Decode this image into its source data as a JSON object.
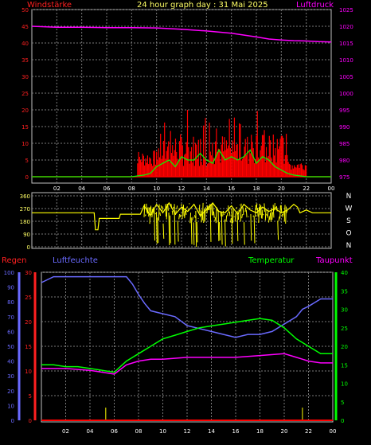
{
  "header": {
    "title": "24 hour graph day : 31 Mai 2025",
    "left_label": "Windstärke",
    "right_label": "Luftdruck"
  },
  "colors": {
    "wind_gust": "#ff0000",
    "wind_avg": "#00ff00",
    "pressure": "#ff00ff",
    "direction": "#ffff00",
    "humidity": "#6a6aff",
    "temperature": "#00ff00",
    "dewpoint": "#ff00ff",
    "rain": "#ff0000",
    "grid": "#7a7a7a",
    "frame": "#c0c0c0"
  },
  "chart_data": [
    {
      "type": "line",
      "name": "wind-pressure",
      "x_ticks": [
        "02",
        "04",
        "06",
        "08",
        "10",
        "12",
        "14",
        "16",
        "18",
        "20",
        "22",
        "00"
      ],
      "xlim": [
        0,
        24
      ],
      "ylim_left": [
        0,
        50
      ],
      "left_ticks": [
        "0",
        "5",
        "10",
        "15",
        "20",
        "25",
        "30",
        "35",
        "40",
        "45",
        "50"
      ],
      "ylim_right": [
        975,
        1025
      ],
      "right_ticks": [
        "975",
        "980",
        "985",
        "990",
        "995",
        "1000",
        "1005",
        "1010",
        "1015",
        "1020",
        "1025"
      ],
      "series": [
        {
          "key": "pressure",
          "axis": "right",
          "x": [
            0,
            2,
            4,
            6,
            8,
            10,
            12,
            14,
            16,
            18,
            19,
            20,
            21,
            22,
            23,
            24
          ],
          "y": [
            1020,
            1019.7,
            1019.7,
            1019.6,
            1019.6,
            1019.5,
            1019.1,
            1018.6,
            1017.9,
            1016.8,
            1016.2,
            1015.9,
            1015.7,
            1015.6,
            1015.4,
            1015.3
          ]
        },
        {
          "key": "wind_avg",
          "axis": "left",
          "x": [
            0,
            8,
            9,
            9.5,
            10,
            10.5,
            11,
            11.5,
            12,
            12.5,
            13,
            13.5,
            14,
            14.5,
            15,
            15.5,
            16,
            16.5,
            17,
            17.5,
            18,
            18.5,
            19,
            19.5,
            20,
            20.5,
            21,
            22,
            23,
            24
          ],
          "y": [
            0,
            0,
            0.5,
            1,
            3,
            4,
            5,
            3,
            6,
            5,
            5,
            7,
            5,
            4,
            8,
            5,
            6,
            5,
            6,
            8,
            4,
            6,
            5,
            3,
            2,
            1,
            0.5,
            0,
            0,
            0
          ]
        }
      ]
    },
    {
      "type": "line",
      "name": "wind-direction",
      "x_ticks": [],
      "xlim": [
        0,
        24
      ],
      "ylim": [
        0,
        360
      ],
      "y_ticks": [
        "0",
        "90",
        "180",
        "270",
        "360"
      ],
      "compass": [
        "N",
        "W",
        "S",
        "O",
        "N"
      ],
      "series": [
        {
          "key": "direction",
          "x": [
            0,
            5,
            5.1,
            5.3,
            5.4,
            7,
            7.1,
            8.7,
            9,
            9.5,
            10,
            10.5,
            11,
            11.5,
            12,
            12.5,
            13,
            13.5,
            14,
            14.5,
            15,
            15.5,
            16,
            16.5,
            17,
            17.5,
            18,
            18.5,
            19,
            19.5,
            20,
            20.5,
            21,
            21.3,
            21.5,
            22,
            22.5,
            23,
            24
          ],
          "y": [
            240,
            240,
            120,
            120,
            200,
            200,
            230,
            230,
            290,
            220,
            300,
            240,
            310,
            230,
            280,
            250,
            300,
            220,
            260,
            310,
            250,
            240,
            290,
            230,
            300,
            260,
            240,
            280,
            250,
            270,
            240,
            260,
            300,
            280,
            240,
            260,
            240,
            240,
            240
          ]
        }
      ]
    },
    {
      "type": "line",
      "name": "climate",
      "x_ticks": [
        "02",
        "04",
        "06",
        "08",
        "10",
        "12",
        "14",
        "16",
        "18",
        "20",
        "22",
        "00"
      ],
      "xlim": [
        0,
        24
      ],
      "humidity_ticks": [
        "0",
        "10",
        "20",
        "30",
        "40",
        "50",
        "60",
        "70",
        "80",
        "90",
        "100"
      ],
      "ylim_humidity": [
        0,
        100
      ],
      "rain_ticks": [
        "0",
        "5",
        "10",
        "15",
        "20",
        "25",
        "30"
      ],
      "ylim_rain": [
        0,
        30
      ],
      "temp_ticks": [
        "0",
        "5",
        "10",
        "15",
        "20",
        "25",
        "30",
        "35",
        "40"
      ],
      "ylim_temp": [
        0,
        40
      ],
      "series": [
        {
          "key": "humidity",
          "x": [
            0,
            1,
            2,
            4,
            6,
            7,
            7.5,
            8,
            8.5,
            9,
            10,
            11,
            12,
            13,
            14,
            15,
            16,
            17,
            18,
            19,
            20,
            21,
            21.5,
            22,
            23,
            24
          ],
          "y": [
            93,
            97,
            97,
            97,
            97,
            97,
            92,
            85,
            79,
            74,
            72,
            70,
            64,
            62,
            60,
            58,
            56,
            58,
            58,
            60,
            65,
            70,
            75,
            77,
            82,
            82
          ]
        },
        {
          "key": "temperature",
          "axis": "temp",
          "x": [
            0,
            1,
            2,
            3,
            4,
            5,
            6,
            7,
            8,
            9,
            10,
            11,
            12,
            13,
            14,
            15,
            16,
            17,
            18,
            19,
            20,
            21,
            22,
            23,
            24
          ],
          "y": [
            15,
            15,
            14.5,
            14.5,
            14,
            13.5,
            13,
            16,
            18,
            20,
            22,
            23,
            24,
            25,
            25.5,
            26,
            26.5,
            27,
            27.5,
            27,
            25,
            22,
            20,
            18,
            18
          ]
        },
        {
          "key": "dewpoint",
          "axis": "temp",
          "x": [
            0,
            2,
            4,
            6,
            7,
            8,
            9,
            10,
            12,
            14,
            16,
            18,
            20,
            21,
            22,
            23,
            24
          ],
          "y": [
            14,
            14,
            13.5,
            12.5,
            15,
            16,
            16.5,
            16.5,
            17,
            17,
            17,
            17.5,
            18,
            17,
            16,
            15.5,
            15.5
          ]
        },
        {
          "key": "rain",
          "axis": "rain",
          "x": [
            0,
            24
          ],
          "y": [
            0,
            0
          ]
        }
      ],
      "legend": {
        "rain": "Regen",
        "humidity": "Luftfeuchte",
        "temperature": "Temperatur",
        "dewpoint": "Taupunkt"
      }
    }
  ]
}
